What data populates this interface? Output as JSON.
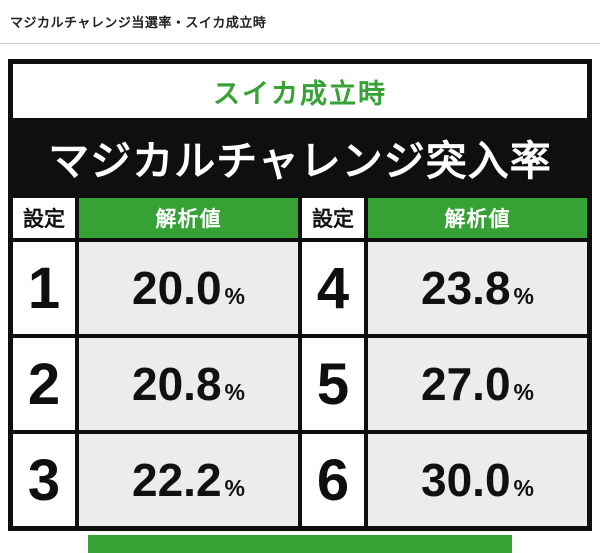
{
  "page": {
    "section_title": "マジカルチャレンジ当選率・スイカ成立時"
  },
  "board": {
    "subtitle": "スイカ成立時",
    "title": "マジカルチャレンジ突入率",
    "header": {
      "setting": "設定",
      "value": "解析値"
    },
    "percent": "%",
    "rows": [
      {
        "left_setting": "1",
        "left_value": "20.0",
        "right_setting": "4",
        "right_value": "23.8"
      },
      {
        "left_setting": "2",
        "left_value": "20.8",
        "right_setting": "5",
        "right_value": "27.0"
      },
      {
        "left_setting": "3",
        "left_value": "22.2",
        "right_setting": "6",
        "right_value": "30.0"
      }
    ]
  },
  "colors": {
    "green": "#36a135",
    "black": "#0f0f0f",
    "cell_gray": "#ececec",
    "divider": "#cccccc"
  }
}
